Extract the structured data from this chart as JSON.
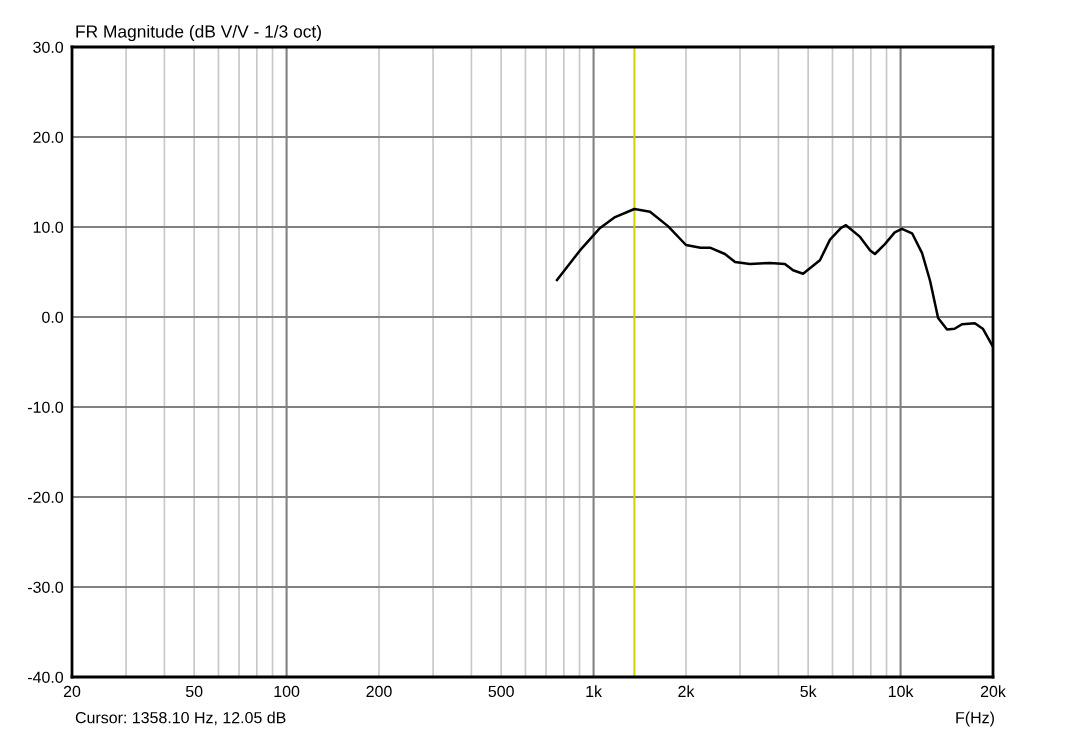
{
  "chart_data": {
    "type": "line",
    "title": "FR Magnitude (dB V/V - 1/3 oct)",
    "xlabel": "F(Hz)",
    "log": "x",
    "grid": true,
    "marker": "none",
    "line_style": "solid",
    "annotations": [
      "Cursor: 1358.10 Hz, 12.05 dB"
    ],
    "ref_lines": [
      {
        "axis": "x",
        "value": 1358.1,
        "color": "#d4d400"
      }
    ],
    "xlim": [
      20,
      20000
    ],
    "xticks": [
      20,
      {
        "value": 30,
        "label": null
      },
      {
        "value": 40,
        "label": null
      },
      50,
      {
        "value": 60,
        "label": null
      },
      {
        "value": 70,
        "label": null
      },
      {
        "value": 80,
        "label": null
      },
      {
        "value": 90,
        "label": null
      },
      100,
      200,
      {
        "value": 300,
        "label": null
      },
      {
        "value": 400,
        "label": null
      },
      500,
      {
        "value": 600,
        "label": null
      },
      {
        "value": 700,
        "label": null
      },
      {
        "value": 800,
        "label": null
      },
      {
        "value": 900,
        "label": null
      },
      {
        "value": 1000,
        "label": "1k"
      },
      {
        "value": 2000,
        "label": "2k"
      },
      {
        "value": 3000,
        "label": null
      },
      {
        "value": 4000,
        "label": null
      },
      {
        "value": 5000,
        "label": "5k"
      },
      {
        "value": 6000,
        "label": null
      },
      {
        "value": 7000,
        "label": null
      },
      {
        "value": 8000,
        "label": null
      },
      {
        "value": 9000,
        "label": null
      },
      {
        "value": 10000,
        "label": "10k"
      },
      {
        "value": 20000,
        "label": "20k"
      }
    ],
    "ylim": [
      -40,
      30
    ],
    "yticks": [
      {
        "value": -40,
        "label": "-40.0"
      },
      {
        "value": -30,
        "label": "-30.0"
      },
      {
        "value": -20,
        "label": "-20.0"
      },
      {
        "value": -10,
        "label": "-10.0"
      },
      {
        "value": 0,
        "label": "0.0"
      },
      {
        "value": 10,
        "label": "10.0"
      },
      {
        "value": 20,
        "label": "20.0"
      },
      {
        "value": 30,
        "label": "30.0"
      }
    ],
    "series": [
      {
        "color": "#000000",
        "x": [
          760,
          903,
          1050,
          1175,
          1358,
          1527,
          1747,
          2000,
          2230,
          2394,
          2678,
          2890,
          3230,
          3760,
          4200,
          4465,
          4812,
          5150,
          5460,
          5890,
          6400,
          6640,
          7380,
          7960,
          8250,
          8890,
          9570,
          10100,
          10900,
          11750,
          12480,
          13250,
          14170,
          15000,
          15850,
          17450,
          18530,
          20000
        ],
        "values": [
          4.1,
          7.4,
          9.9,
          11.1,
          12.0,
          11.7,
          10.1,
          8.0,
          7.7,
          7.7,
          7.0,
          6.1,
          5.9,
          6.0,
          5.9,
          5.2,
          4.8,
          5.6,
          6.3,
          8.6,
          9.9,
          10.2,
          8.9,
          7.4,
          7.0,
          8.1,
          9.4,
          9.8,
          9.3,
          7.1,
          4.0,
          -0.1,
          -1.4,
          -1.3,
          -0.8,
          -0.7,
          -1.3,
          -3.3
        ]
      }
    ]
  }
}
